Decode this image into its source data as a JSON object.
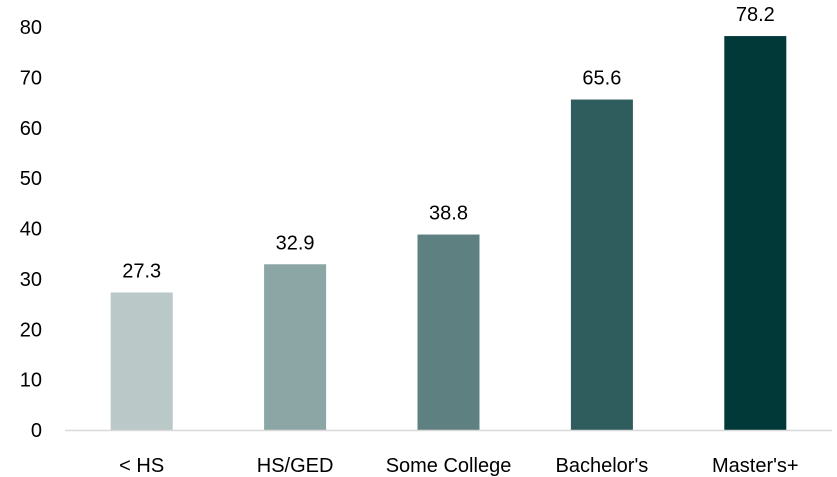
{
  "chart_data": {
    "type": "bar",
    "title": "",
    "xlabel": "",
    "ylabel": "",
    "categories": [
      "< HS",
      "HS/GED",
      "Some College",
      "Bachelor's",
      "Master's+"
    ],
    "values": [
      27.3,
      32.9,
      38.8,
      65.6,
      78.2
    ],
    "data_labels": [
      "27.3",
      "32.9",
      "38.8",
      "65.6",
      "78.2"
    ],
    "bar_colors": [
      "#bac8c8",
      "#8ca5a5",
      "#5e8080",
      "#2f5c5c",
      "#013838"
    ],
    "ylim": [
      0,
      80
    ],
    "yticks": [
      0,
      10,
      20,
      30,
      40,
      50,
      60,
      70,
      80
    ],
    "ytick_labels": [
      "0",
      "10",
      "20",
      "30",
      "40",
      "50",
      "60",
      "70",
      "80"
    ],
    "grid": false,
    "legend": "none"
  }
}
